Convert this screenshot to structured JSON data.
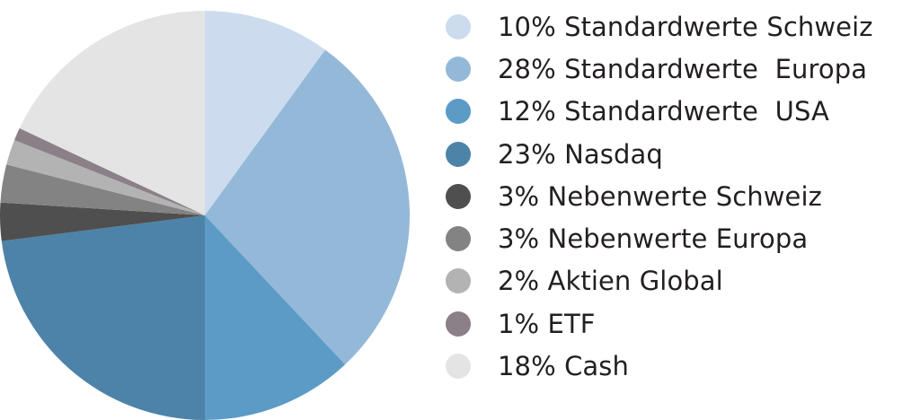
{
  "chart_data": {
    "type": "pie",
    "title": "",
    "legend_position": "right",
    "start": "top",
    "direction": "clockwise",
    "slices": [
      {
        "label": "10% Standardwerte Schweiz",
        "value": 10,
        "color": "#ccdcee"
      },
      {
        "label": "28% Standardwerte  Europa",
        "value": 28,
        "color": "#94b8d8"
      },
      {
        "label": "12% Standardwerte  USA",
        "value": 12,
        "color": "#5b9bc6"
      },
      {
        "label": "23% Nasdaq",
        "value": 23,
        "color": "#4d83a8"
      },
      {
        "label": "3% Nebenwerte Schweiz",
        "value": 3,
        "color": "#4f4f4f"
      },
      {
        "label": "3% Nebenwerte Europa",
        "value": 3,
        "color": "#838383"
      },
      {
        "label": "2% Aktien Global",
        "value": 2,
        "color": "#b3b3b3"
      },
      {
        "label": "1% ETF",
        "value": 1,
        "color": "#8b7f88"
      },
      {
        "label": "18% Cash",
        "value": 18,
        "color": "#e4e4e4"
      }
    ]
  }
}
